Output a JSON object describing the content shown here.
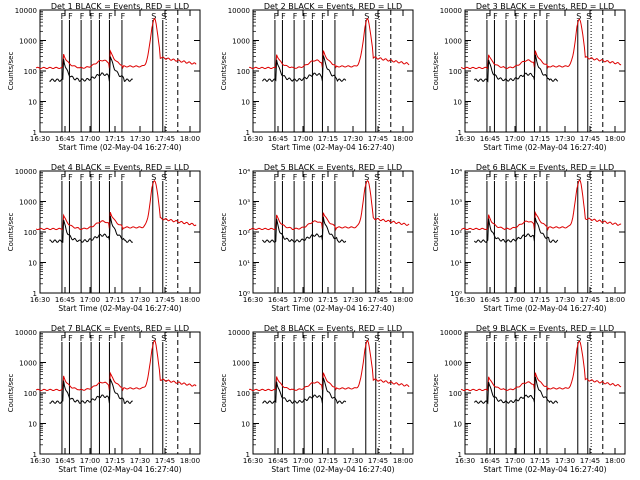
{
  "chart_data": [
    {
      "type": "line",
      "title": "Det 1  BLACK = Events, RED = LLD",
      "xlabel": "Start Time (02-May-04 16:27:40)",
      "ylabel": "Counts/sec",
      "yscale": "log",
      "ylim": [
        1,
        10000
      ],
      "y_tick_labels": [
        "1",
        "10",
        "100",
        "1000",
        "10000"
      ],
      "x_tick_labels": [
        "16:30",
        "16:45",
        "17:00",
        "17:15",
        "17:30",
        "17:45",
        "18:00"
      ],
      "markers": [
        "F",
        "F",
        "F",
        "F",
        "F",
        "F",
        "F",
        "S",
        "S"
      ],
      "series": []
    },
    {
      "type": "line",
      "title": "Det 2  BLACK = Events, RED = LLD",
      "xlabel": "Start Time (02-May-04 16:27:40)",
      "ylabel": "Counts/sec",
      "yscale": "log",
      "ylim": [
        1,
        10000
      ],
      "y_tick_labels": [
        "1",
        "10",
        "100",
        "1000",
        "10000"
      ],
      "x_tick_labels": [
        "16:30",
        "16:45",
        "17:00",
        "17:15",
        "17:30",
        "17:45",
        "18:00"
      ],
      "markers": [
        "F",
        "F",
        "F",
        "F",
        "F",
        "F",
        "F",
        "S",
        "S"
      ],
      "series": []
    },
    {
      "type": "line",
      "title": "Det 3  BLACK = Events, RED = LLD",
      "xlabel": "Start Time (02-May-04 16:27:40)",
      "ylabel": "Counts/sec",
      "yscale": "log",
      "ylim": [
        1,
        10000
      ],
      "y_tick_labels": [
        "1",
        "10",
        "100",
        "1000",
        "10000"
      ],
      "x_tick_labels": [
        "16:30",
        "16:45",
        "17:00",
        "17:15",
        "17:30",
        "17:45",
        "18:00"
      ],
      "markers": [
        "F",
        "F",
        "F",
        "F",
        "F",
        "F",
        "F",
        "S",
        "S"
      ],
      "series": []
    },
    {
      "type": "line",
      "title": "Det 4  BLACK = Events, RED = LLD",
      "xlabel": "Start Time (02-May-04 16:27:40)",
      "ylabel": "Counts/sec",
      "yscale": "log",
      "ylim": [
        1,
        10000
      ],
      "y_tick_labels": [
        "1",
        "10",
        "100",
        "1000",
        "10000"
      ],
      "x_tick_labels": [
        "16:30",
        "16:45",
        "17:00",
        "17:15",
        "17:30",
        "17:45",
        "18:00"
      ],
      "markers": [
        "F",
        "F",
        "F",
        "F",
        "F",
        "F",
        "F",
        "S",
        "S"
      ],
      "series": []
    },
    {
      "type": "line",
      "title": "Det 5  BLACK = Events, RED = LLD",
      "xlabel": "Start Time (02-May-04 16:27:40)",
      "ylabel": "Counts/sec",
      "yscale": "log",
      "ylim": [
        1,
        10000
      ],
      "y_tick_labels": [
        "10⁰",
        "10¹",
        "10²",
        "10³",
        "10⁴"
      ],
      "x_tick_labels": [
        "16:30",
        "16:45",
        "17:00",
        "17:15",
        "17:30",
        "17:45",
        "18:00"
      ],
      "markers": [
        "F",
        "F",
        "F",
        "F",
        "F",
        "F",
        "F",
        "S",
        "S"
      ],
      "series": []
    },
    {
      "type": "line",
      "title": "Det 6  BLACK = Events, RED = LLD",
      "xlabel": "Start Time (02-May-04 16:27:40)",
      "ylabel": "Counts/sec",
      "yscale": "log",
      "ylim": [
        1,
        10000
      ],
      "y_tick_labels": [
        "10⁰",
        "10¹",
        "10²",
        "10³",
        "10⁴"
      ],
      "x_tick_labels": [
        "16:30",
        "16:45",
        "17:00",
        "17:15",
        "17:30",
        "17:45",
        "18:00"
      ],
      "markers": [
        "F",
        "F",
        "F",
        "F",
        "F",
        "F",
        "F",
        "S",
        "S"
      ],
      "series": []
    },
    {
      "type": "line",
      "title": "Det 7  BLACK = Events, RED = LLD",
      "xlabel": "Start Time (02-May-04 16:27:40)",
      "ylabel": "Counts/sec",
      "yscale": "log",
      "ylim": [
        1,
        10000
      ],
      "y_tick_labels": [
        "1",
        "10",
        "100",
        "1000",
        "10000"
      ],
      "x_tick_labels": [
        "16:30",
        "16:45",
        "17:00",
        "17:15",
        "17:30",
        "17:45",
        "18:00"
      ],
      "markers": [
        "F",
        "F",
        "F",
        "F",
        "F",
        "F",
        "F",
        "S",
        "S"
      ],
      "series": []
    },
    {
      "type": "line",
      "title": "Det 8  BLACK = Events, RED = LLD",
      "xlabel": "Start Time (02-May-04 16:27:40)",
      "ylabel": "Counts/sec",
      "yscale": "log",
      "ylim": [
        1,
        10000
      ],
      "y_tick_labels": [
        "1",
        "10",
        "100",
        "1000",
        "10000"
      ],
      "x_tick_labels": [
        "16:30",
        "16:45",
        "17:00",
        "17:15",
        "17:30",
        "17:45",
        "18:00"
      ],
      "markers": [
        "F",
        "F",
        "F",
        "F",
        "F",
        "F",
        "F",
        "S",
        "S"
      ],
      "series": []
    },
    {
      "type": "line",
      "title": "Det 9  BLACK = Events, RED = LLD",
      "xlabel": "Start Time (02-May-04 16:27:40)",
      "ylabel": "Counts/sec",
      "yscale": "log",
      "ylim": [
        1,
        10000
      ],
      "y_tick_labels": [
        "1",
        "10",
        "100",
        "1000",
        "10000"
      ],
      "x_tick_labels": [
        "16:30",
        "16:45",
        "17:00",
        "17:15",
        "17:30",
        "17:45",
        "18:00"
      ],
      "markers": [
        "F",
        "F",
        "F",
        "F",
        "F",
        "F",
        "F",
        "S",
        "S"
      ],
      "series": []
    }
  ],
  "colors": {
    "events": "#000000",
    "lld": "#dd0000",
    "axes": "#000000"
  }
}
